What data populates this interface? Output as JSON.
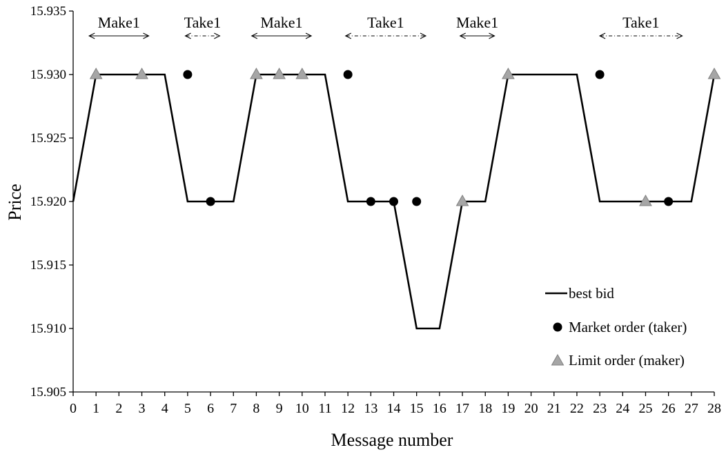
{
  "chart_data": {
    "type": "line",
    "title": "",
    "xlabel": "Message number",
    "ylabel": "Price",
    "xlim": [
      0,
      28
    ],
    "ylim": [
      15.905,
      15.935
    ],
    "y_ticks": [
      "15.905",
      "15.910",
      "15.915",
      "15.920",
      "15.925",
      "15.930",
      "15.935"
    ],
    "x_ticks": [
      "0",
      "1",
      "2",
      "3",
      "4",
      "5",
      "6",
      "7",
      "8",
      "9",
      "10",
      "11",
      "12",
      "13",
      "14",
      "15",
      "16",
      "17",
      "18",
      "19",
      "20",
      "21",
      "22",
      "23",
      "24",
      "25",
      "26",
      "27",
      "28"
    ],
    "grid": false,
    "legend_position": "bottom-right",
    "series": [
      {
        "name": "best bid",
        "kind": "line",
        "color": "#000000",
        "x": [
          0,
          1,
          2,
          3,
          4,
          5,
          6,
          7,
          8,
          9,
          10,
          11,
          12,
          13,
          14,
          15,
          16,
          17,
          18,
          19,
          20,
          21,
          22,
          23,
          24,
          25,
          26,
          27,
          28
        ],
        "y": [
          15.92,
          15.93,
          15.93,
          15.93,
          15.93,
          15.92,
          15.92,
          15.92,
          15.93,
          15.93,
          15.93,
          15.93,
          15.92,
          15.92,
          15.92,
          15.91,
          15.91,
          15.92,
          15.92,
          15.93,
          15.93,
          15.93,
          15.93,
          15.92,
          15.92,
          15.92,
          15.92,
          15.92,
          15.93
        ]
      },
      {
        "name": "Market order (taker)",
        "kind": "scatter",
        "marker": "circle",
        "color": "#000000",
        "x": [
          5,
          6,
          12,
          13,
          14,
          15,
          23,
          26
        ],
        "y": [
          15.93,
          15.92,
          15.93,
          15.92,
          15.92,
          15.92,
          15.93,
          15.92
        ]
      },
      {
        "name": "Limit order (maker)",
        "kind": "scatter",
        "marker": "triangle",
        "color": "#a6a6a6",
        "x": [
          1,
          3,
          8,
          9,
          10,
          17,
          19,
          25,
          28
        ],
        "y": [
          15.93,
          15.93,
          15.93,
          15.93,
          15.93,
          15.92,
          15.93,
          15.92,
          15.93
        ]
      }
    ],
    "annotations": [
      {
        "label": "Make1",
        "from": 0.7,
        "to": 3.3,
        "arrow": "solid"
      },
      {
        "label": "Take1",
        "from": 4.9,
        "to": 6.4,
        "arrow": "dash-dot"
      },
      {
        "label": "Make1",
        "from": 7.8,
        "to": 10.4,
        "arrow": "solid"
      },
      {
        "label": "Take1",
        "from": 11.9,
        "to": 15.4,
        "arrow": "dash-dot"
      },
      {
        "label": "Make1",
        "from": 16.9,
        "to": 18.4,
        "arrow": "solid"
      },
      {
        "label": "Take1",
        "from": 23.0,
        "to": 26.6,
        "arrow": "dash-dot"
      }
    ]
  }
}
